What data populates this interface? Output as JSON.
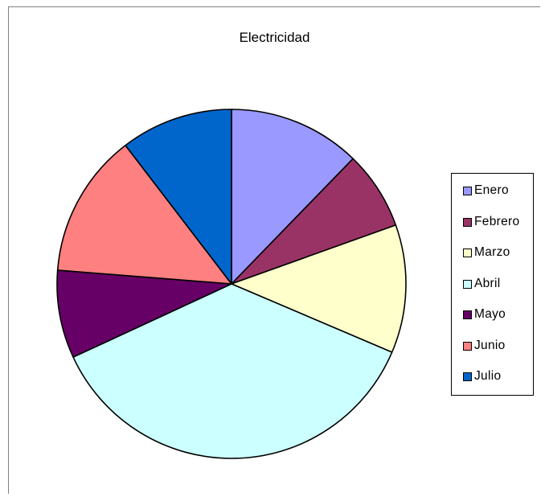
{
  "chart_data": {
    "type": "pie",
    "title": "Electricidad",
    "categories": [
      "Enero",
      "Febrero",
      "Marzo",
      "Abril",
      "Mayo",
      "Junio",
      "Julio"
    ],
    "values": [
      12.5,
      7.4,
      12.1,
      37.4,
      8.3,
      13.6,
      10.6
    ],
    "unit": "percent",
    "start_angle_deg": 0,
    "direction": "clockwise",
    "colors": [
      "#9999ff",
      "#993366",
      "#ffffcc",
      "#ccffff",
      "#660066",
      "#ff8080",
      "#0066cc"
    ],
    "legend_position": "right",
    "legend": [
      "Enero",
      "Febrero",
      "Marzo",
      "Abril",
      "Mayo",
      "Junio",
      "Julio"
    ]
  }
}
